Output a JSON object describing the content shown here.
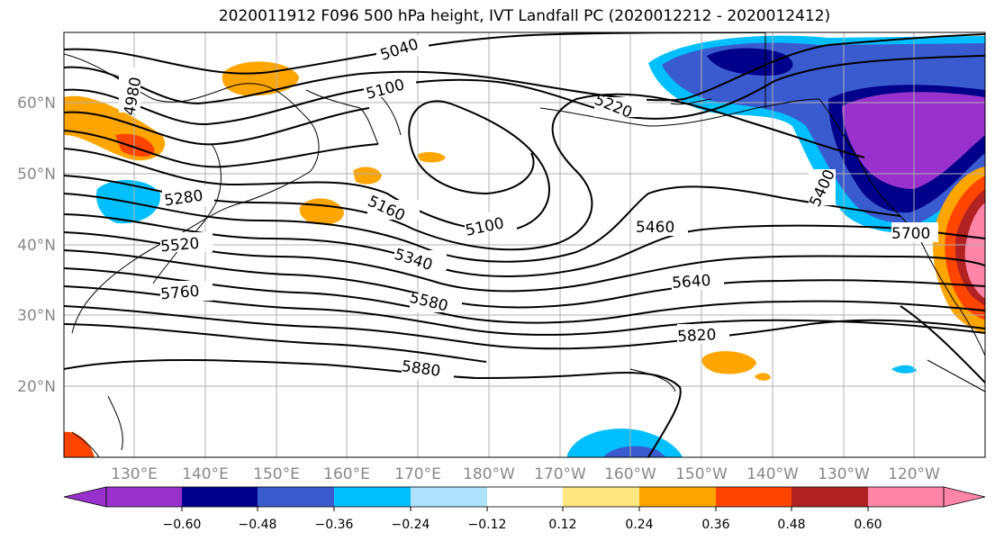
{
  "title": "2020011912 F096 500 hPa height, IVT Landfall PC (2020012212 - 2020012412)",
  "map": {
    "lat_labels": [
      "60°N",
      "50°N",
      "40°N",
      "30°N",
      "20°N"
    ],
    "lon_labels": [
      "130°E",
      "140°E",
      "150°E",
      "160°E",
      "170°E",
      "180°W",
      "170°W",
      "160°W",
      "150°W",
      "140°W",
      "130°W",
      "120°W"
    ],
    "contour_labels": [
      "5040",
      "4980",
      "5100",
      "5220",
      "5280",
      "5160",
      "5100",
      "5400",
      "5460",
      "5700",
      "5520",
      "5340",
      "5640",
      "5760",
      "5580",
      "5820",
      "5880"
    ]
  },
  "colorbar": {
    "ticks": [
      "−0.60",
      "−0.48",
      "−0.36",
      "−0.24",
      "−0.12",
      "0.12",
      "0.24",
      "0.36",
      "0.48",
      "0.60"
    ],
    "colors": [
      "#9932CC",
      "#00008B",
      "#3A5BCF",
      "#00BFFF",
      "#B0E2FF",
      "#FFFFFF",
      "#FFE680",
      "#FFA500",
      "#FF4500",
      "#B22222",
      "#FF85A8",
      "#FF85A8"
    ]
  }
}
